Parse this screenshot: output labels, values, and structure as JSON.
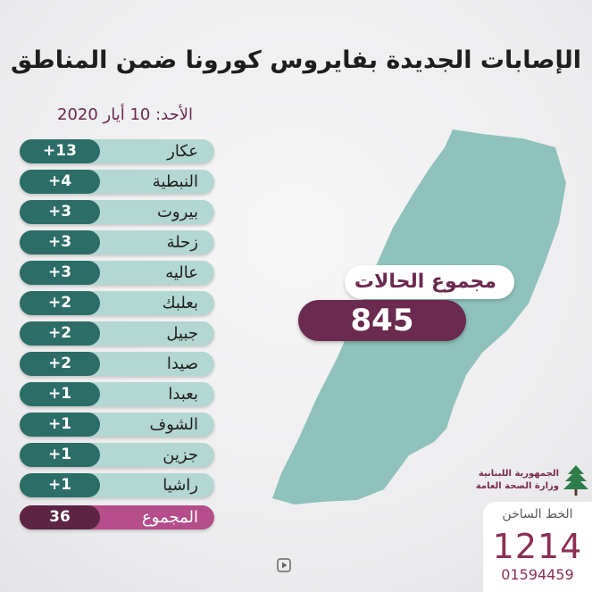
{
  "title": "الإصابات الجديدة بفايروس كورونا ضمن المناطق",
  "date": "الأحد: 10 أيار 2020",
  "regions": [
    {
      "name": "عكار",
      "value": "+13"
    },
    {
      "name": "النبطية",
      "value": "+4"
    },
    {
      "name": "بيروت",
      "value": "+3"
    },
    {
      "name": "زحلة",
      "value": "+3"
    },
    {
      "name": "عاليه",
      "value": "+3"
    },
    {
      "name": "بعلبك",
      "value": "+2"
    },
    {
      "name": "جبيل",
      "value": "+2"
    },
    {
      "name": "صيدا",
      "value": "+2"
    },
    {
      "name": "بعبدا",
      "value": "+1"
    },
    {
      "name": "الشوف",
      "value": "+1"
    },
    {
      "name": "جزين",
      "value": "+1"
    },
    {
      "name": "راشيا",
      "value": "+1"
    }
  ],
  "total_row": {
    "name": "المجموع",
    "value": "36"
  },
  "cases_total": {
    "label": "مجموع الحالات",
    "value": "845"
  },
  "logo": {
    "line1": "الجمهورية اللبنانية",
    "line2": "وزارة الصحة العامة"
  },
  "hotline": {
    "label": "الخط الساخن",
    "number": "1214",
    "number2": "01594459"
  },
  "colors": {
    "teal_dark": "#2c6d68",
    "teal_light": "#b3d7d2",
    "map": "#8fc2bc",
    "plum": "#6b2a50",
    "pink": "#b44d8a"
  },
  "icons": {
    "play": "play-icon",
    "cedar": "cedar-icon"
  }
}
